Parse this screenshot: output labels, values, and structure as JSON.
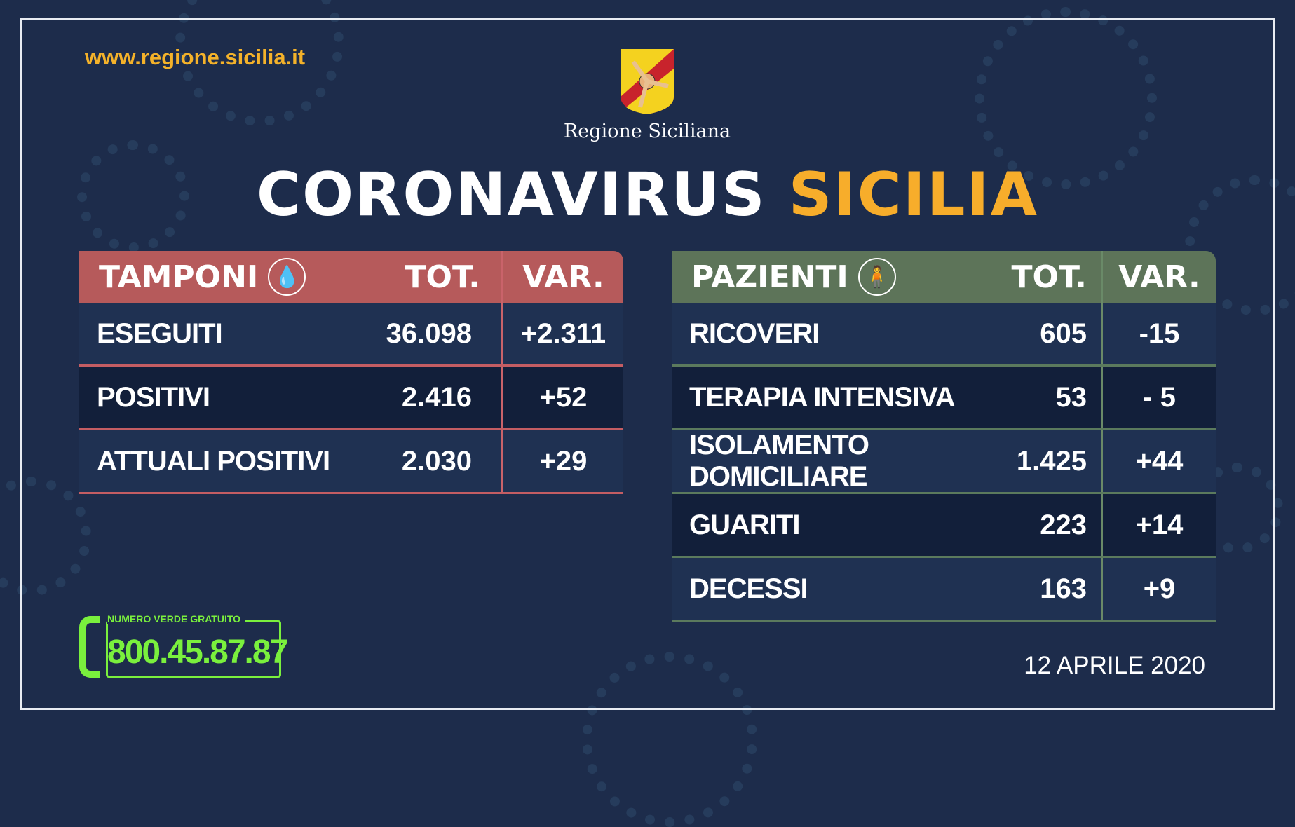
{
  "website": "www.regione.sicilia.it",
  "logo": {
    "text": "Regione Siciliana"
  },
  "title": {
    "part1": "CORONAVIRUS",
    "part2": "SICILIA"
  },
  "colors": {
    "accent": "#f7ad2b",
    "tamponi_header": "#b65a5b",
    "pazienti_header": "#5d7459",
    "phone": "#7af03d",
    "background": "#1d2c4b"
  },
  "tamponi": {
    "title": "TAMPONI",
    "icon": "swab-icon",
    "tot": "TOT.",
    "var": "VAR.",
    "rows": [
      {
        "label": "ESEGUITI",
        "tot": "36.098",
        "var": "+2.311"
      },
      {
        "label": "POSITIVI",
        "tot": "2.416",
        "var": "+52"
      },
      {
        "label": "ATTUALI POSITIVI",
        "tot": "2.030",
        "var": "+29"
      }
    ]
  },
  "pazienti": {
    "title": "PAZIENTI",
    "icon": "person-icon",
    "tot": "TOT.",
    "var": "VAR.",
    "rows": [
      {
        "label": "RICOVERI",
        "tot": "605",
        "var": "-15"
      },
      {
        "label": "TERAPIA INTENSIVA",
        "tot": "53",
        "var": "- 5"
      },
      {
        "label": "ISOLAMENTO DOMICILIARE",
        "tot": "1.425",
        "var": "+44"
      },
      {
        "label": "GUARITI",
        "tot": "223",
        "var": "+14"
      },
      {
        "label": "DECESSI",
        "tot": "163",
        "var": "+9"
      }
    ]
  },
  "phone": {
    "label": "NUMERO VERDE GRATUITO",
    "number": "800.45.87.87"
  },
  "date": "12 APRILE 2020"
}
